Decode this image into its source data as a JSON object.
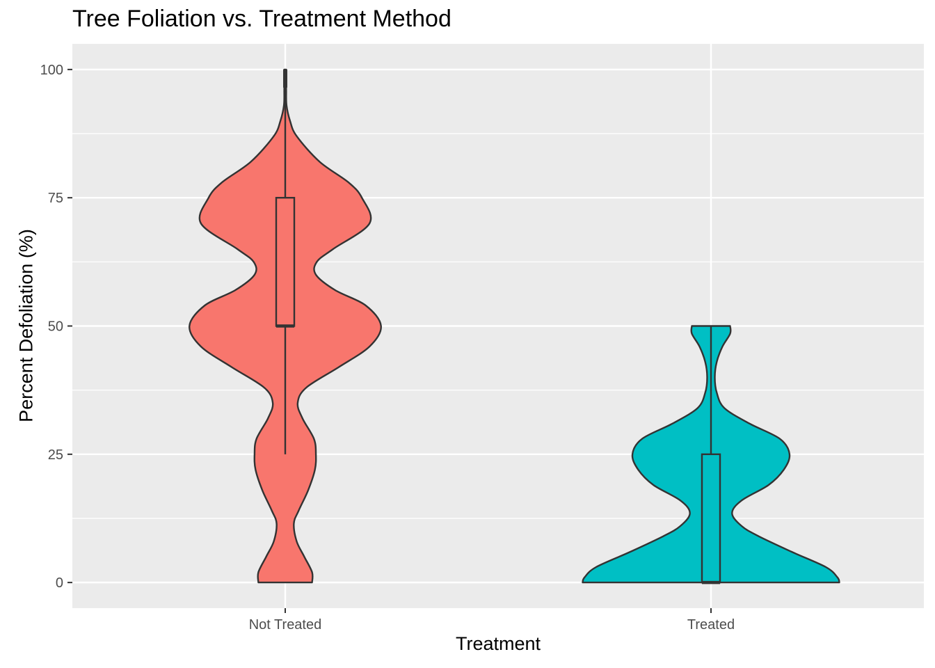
{
  "chart_data": {
    "type": "violin",
    "title": "Tree Foliation vs. Treatment Method",
    "xlabel": "Treatment",
    "ylabel": "Percent Defoliation (%)",
    "categories": [
      "Not Treated",
      "Treated"
    ],
    "ylim": [
      -5,
      105
    ],
    "yticks": [
      0,
      25,
      50,
      75,
      100
    ],
    "grid": true,
    "legend": "none",
    "colors": {
      "Not Treated": "#F8766D",
      "Treated": "#00BFC4",
      "panel": "#EBEBEB",
      "grid": "#FFFFFF",
      "outline": "#333333"
    },
    "series": [
      {
        "category": "Not Treated",
        "density_profile": [
          [
            0,
            0.14
          ],
          [
            2,
            0.14
          ],
          [
            5,
            0.1
          ],
          [
            8,
            0.06
          ],
          [
            11.5,
            0.045
          ],
          [
            14,
            0.07
          ],
          [
            18,
            0.12
          ],
          [
            22,
            0.155
          ],
          [
            25,
            0.16
          ],
          [
            28,
            0.15
          ],
          [
            32,
            0.09
          ],
          [
            35,
            0.065
          ],
          [
            38,
            0.11
          ],
          [
            42,
            0.28
          ],
          [
            46,
            0.44
          ],
          [
            50,
            0.5
          ],
          [
            54,
            0.42
          ],
          [
            57,
            0.26
          ],
          [
            60,
            0.16
          ],
          [
            62.5,
            0.165
          ],
          [
            65,
            0.25
          ],
          [
            70,
            0.44
          ],
          [
            75,
            0.4
          ],
          [
            78,
            0.33
          ],
          [
            82,
            0.18
          ],
          [
            87,
            0.06
          ],
          [
            90,
            0.025
          ],
          [
            93,
            0.007
          ],
          [
            96,
            0.005
          ],
          [
            100,
            0.005
          ]
        ],
        "box": {
          "q1": 50,
          "median": 50,
          "q3": 75,
          "whisker_low": 25,
          "whisker_high": 100
        }
      },
      {
        "category": "Treated",
        "density_profile": [
          [
            0,
            0.67
          ],
          [
            1,
            0.66
          ],
          [
            3,
            0.6
          ],
          [
            6,
            0.42
          ],
          [
            9,
            0.25
          ],
          [
            11,
            0.16
          ],
          [
            13.5,
            0.11
          ],
          [
            16,
            0.16
          ],
          [
            19,
            0.3
          ],
          [
            22,
            0.38
          ],
          [
            25,
            0.41
          ],
          [
            28,
            0.36
          ],
          [
            31,
            0.2
          ],
          [
            34,
            0.07
          ],
          [
            37,
            0.03
          ],
          [
            40,
            0.02
          ],
          [
            43,
            0.03
          ],
          [
            46,
            0.06
          ],
          [
            48.5,
            0.1
          ],
          [
            50,
            0.1
          ]
        ],
        "box": {
          "q1": 0,
          "median": 0,
          "q3": 25,
          "whisker_low": 0,
          "whisker_high": 50
        }
      }
    ]
  }
}
